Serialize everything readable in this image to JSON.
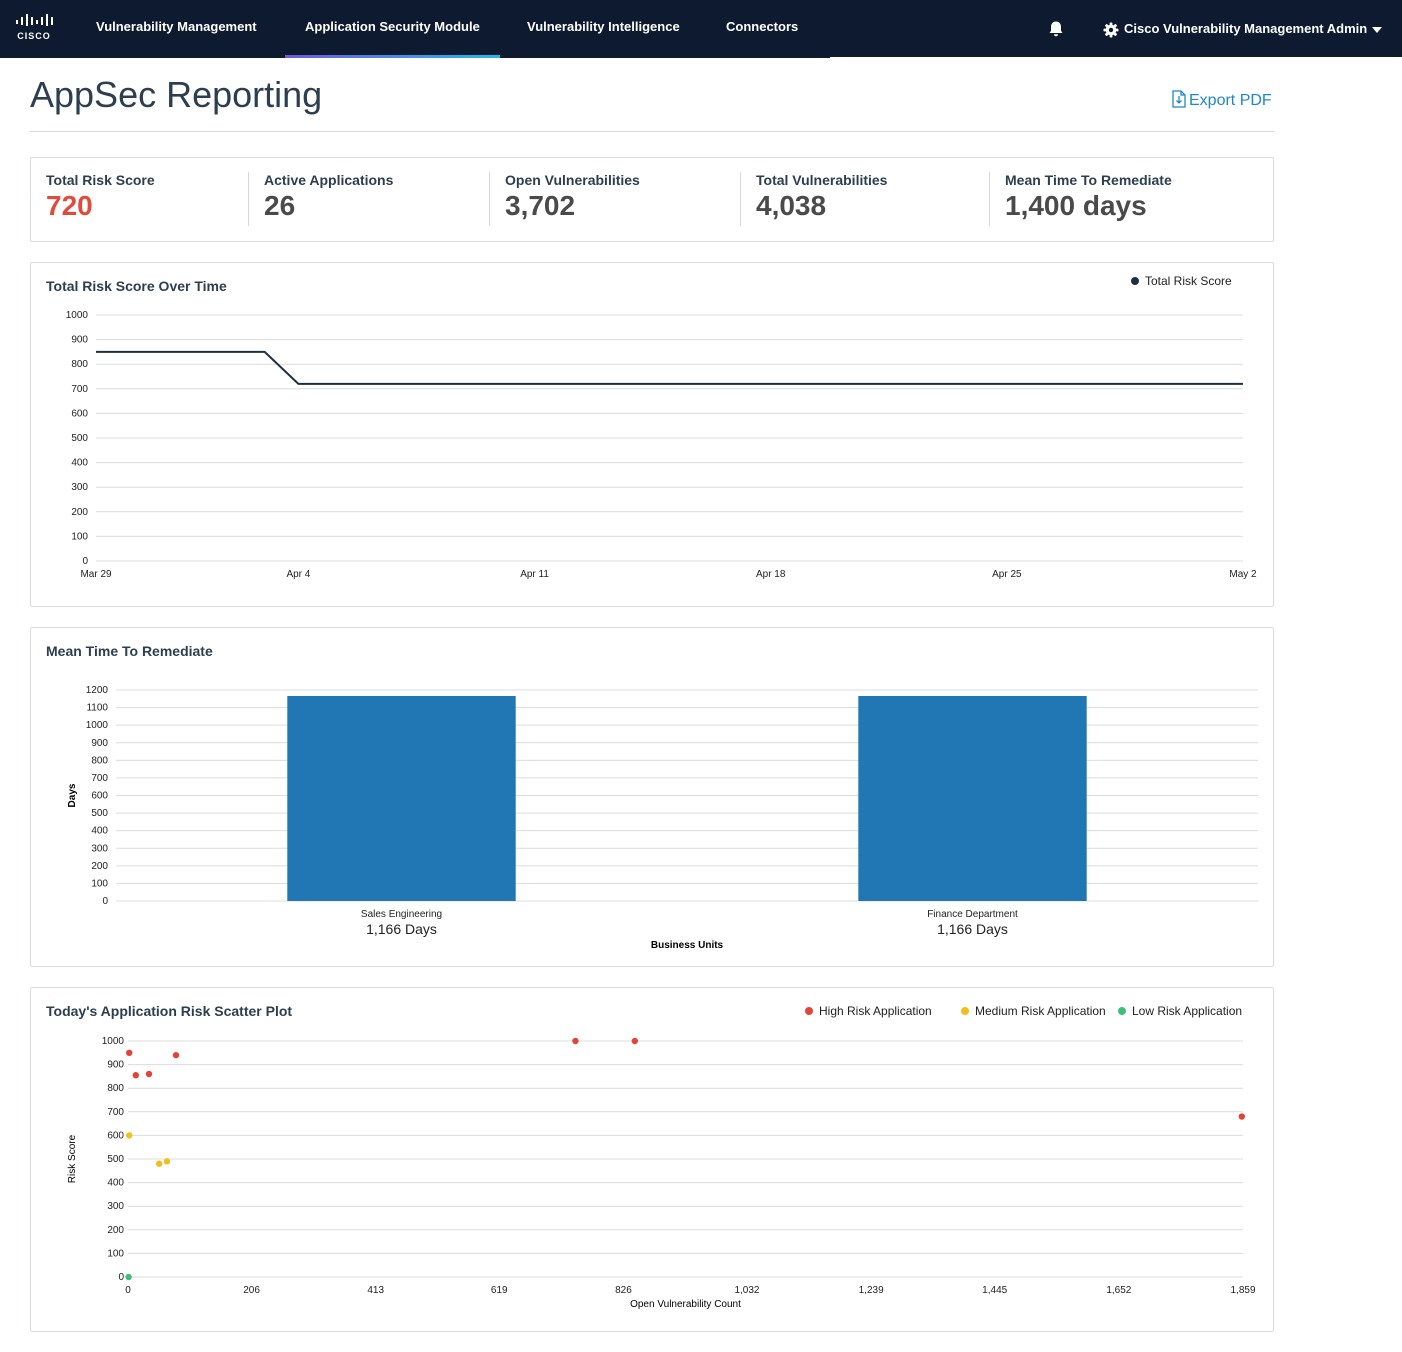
{
  "brand": {
    "logo_text": "CISCO"
  },
  "nav": {
    "items": [
      {
        "label": "Vulnerability Management"
      },
      {
        "label": "Application Security Module"
      },
      {
        "label": "Vulnerability Intelligence"
      },
      {
        "label": "Connectors"
      }
    ],
    "active_index": 1,
    "user_label": "Cisco Vulnerability Management Admin"
  },
  "page": {
    "title": "AppSec Reporting",
    "export_label": "Export PDF"
  },
  "stats": [
    {
      "label": "Total Risk Score",
      "value": "720"
    },
    {
      "label": "Active Applications",
      "value": "26"
    },
    {
      "label": "Open Vulnerabilities",
      "value": "3,702"
    },
    {
      "label": "Total Vulnerabilities",
      "value": "4,038"
    },
    {
      "label": "Mean Time To Remediate",
      "value": "1,400 days"
    }
  ],
  "colors": {
    "nav_bg": "#0d1a2f",
    "risk_value": "#e14b3b",
    "link": "#1f88c8",
    "line": "#1e2f45",
    "bar": "#2077b4",
    "high": "#e0443a",
    "medium": "#f2be1a",
    "low": "#3cc07a"
  },
  "chart_data": [
    {
      "type": "line",
      "title": "Total Risk Score Over Time",
      "legend": [
        "Total Risk Score"
      ],
      "legend_position": "top-right",
      "x_ticks": [
        "Mar 29",
        "Apr 4",
        "Apr 11",
        "Apr 18",
        "Apr 25",
        "May 2"
      ],
      "y_ticks": [
        0,
        100,
        200,
        300,
        400,
        500,
        600,
        700,
        800,
        900,
        1000
      ],
      "ylim": [
        0,
        1000
      ],
      "grid": true,
      "series": [
        {
          "name": "Total Risk Score",
          "x": [
            "Mar 29",
            "Apr 3",
            "Apr 4",
            "May 2"
          ],
          "y": [
            850,
            850,
            720,
            720
          ]
        }
      ]
    },
    {
      "type": "bar",
      "title": "Mean Time To Remediate",
      "xlabel": "Business Units",
      "ylabel": "Days",
      "categories": [
        "Sales Engineering",
        "Finance Department"
      ],
      "values": [
        1166,
        1166
      ],
      "value_labels": [
        "1,166 Days",
        "1,166 Days"
      ],
      "y_ticks": [
        0,
        100,
        200,
        300,
        400,
        500,
        600,
        700,
        800,
        900,
        1000,
        1100,
        1200
      ],
      "ylim": [
        0,
        1200
      ],
      "grid": true
    },
    {
      "type": "scatter",
      "title": "Today's Application Risk Scatter Plot",
      "xlabel": "Open Vulnerability Count",
      "ylabel": "Risk Score",
      "legend_position": "top-right",
      "x_ticks": [
        "0",
        "206",
        "413",
        "619",
        "826",
        "1,032",
        "1,239",
        "1,445",
        "1,652",
        "1,859"
      ],
      "y_ticks": [
        0,
        100,
        200,
        300,
        400,
        500,
        600,
        700,
        800,
        900,
        1000
      ],
      "xlim": [
        0,
        1859
      ],
      "ylim": [
        0,
        1000
      ],
      "grid": true,
      "series": [
        {
          "name": "High Risk Application",
          "points": [
            [
              2,
              950
            ],
            [
              13,
              855
            ],
            [
              35,
              860
            ],
            [
              80,
              940
            ],
            [
              746,
              1000
            ],
            [
              845,
              1000
            ],
            [
              1857,
              680
            ]
          ]
        },
        {
          "name": "Medium Risk Application",
          "points": [
            [
              2,
              600
            ],
            [
              52,
              480
            ],
            [
              65,
              490
            ]
          ]
        },
        {
          "name": "Low Risk Application",
          "points": [
            [
              1,
              0
            ]
          ]
        }
      ]
    }
  ]
}
